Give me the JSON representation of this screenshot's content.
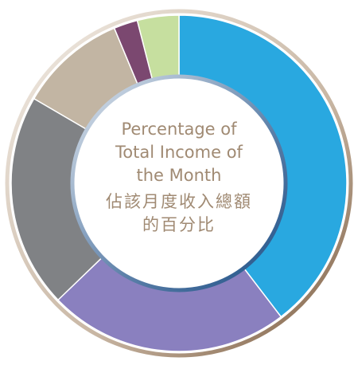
{
  "chart_data": {
    "type": "pie",
    "title": "Percentage of Total Income of the Month",
    "subtitle": "佔該月度收入總額的百分比",
    "categories": [
      null,
      null,
      null,
      null,
      null,
      null
    ],
    "values": [
      39.6,
      23.2,
      20.6,
      10.3,
      2.3,
      4.0
    ],
    "colors": [
      "#29a8e0",
      "#8a80bf",
      "#808285",
      "#c2b5a3",
      "#7b4870",
      "#c6df9f"
    ]
  }
}
